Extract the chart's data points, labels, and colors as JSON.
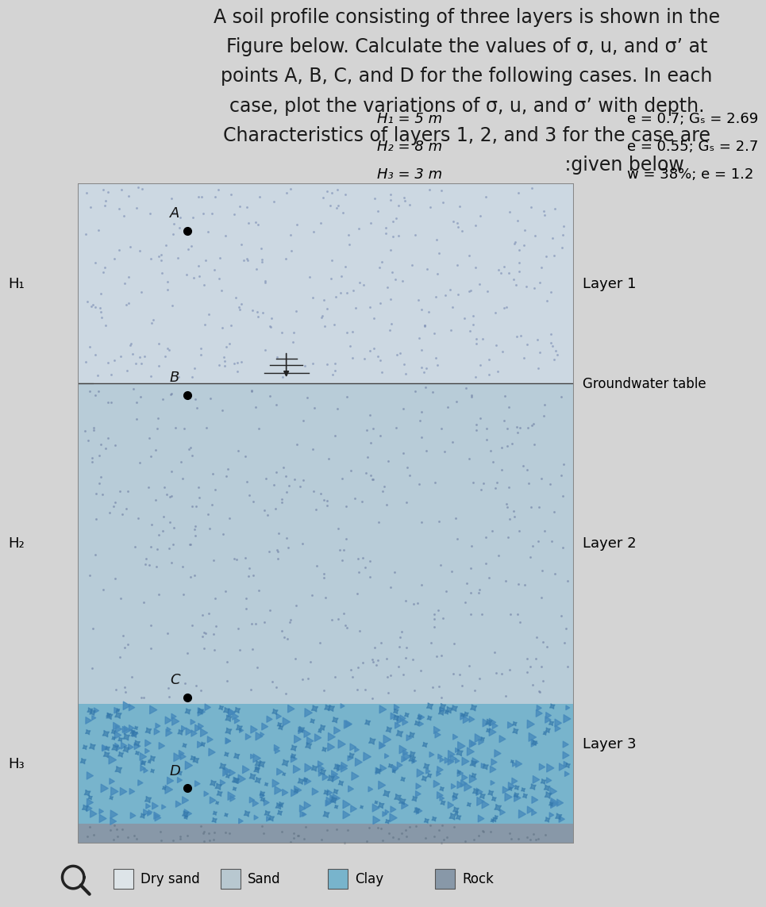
{
  "title_lines": [
    "A soil profile consisting of three layers is shown in the",
    "Figure below. Calculate the values of σ, u, and σʼ at",
    "points A, B, C, and D for the following cases. In each",
    "case, plot the variations of σ, u, and σʼ with depth.",
    "Characteristics of layers 1, 2, and 3 for the case are",
    "                                                     :given below"
  ],
  "fig_bg_color": "#d4d4d4",
  "layer1_color": "#ccd8e2",
  "layer2_color": "#b8ccd8",
  "layer3_color": "#78b4cc",
  "rock_color": "#8898a8",
  "H1_label": "H₁",
  "H2_label": "H₂",
  "H3_label": "H₃",
  "layer1_text": "Layer 1",
  "layer2_text": "Layer 2",
  "layer3_text": "Layer 3",
  "gwt_text": "Groundwater table",
  "params_left": [
    "H₁ = 5 m",
    "H₂ = 8 m",
    "H₃ = 3 m"
  ],
  "params_right": [
    "e = 0.7; Gₛ = 2.69",
    "e = 0.55; Gₛ = 2.7",
    "w = 38%; e = 1.2"
  ],
  "legend_items": [
    "Dry sand",
    "Sand",
    "Clay",
    "Rock"
  ],
  "legend_colors": [
    "#dde4e8",
    "#b8c8d0",
    "#78b4cc",
    "#8898a8"
  ],
  "dot_color1": "#8899bb",
  "dot_color2": "#7788aa",
  "clay_color": "#4488bb",
  "border_color": "#888888"
}
